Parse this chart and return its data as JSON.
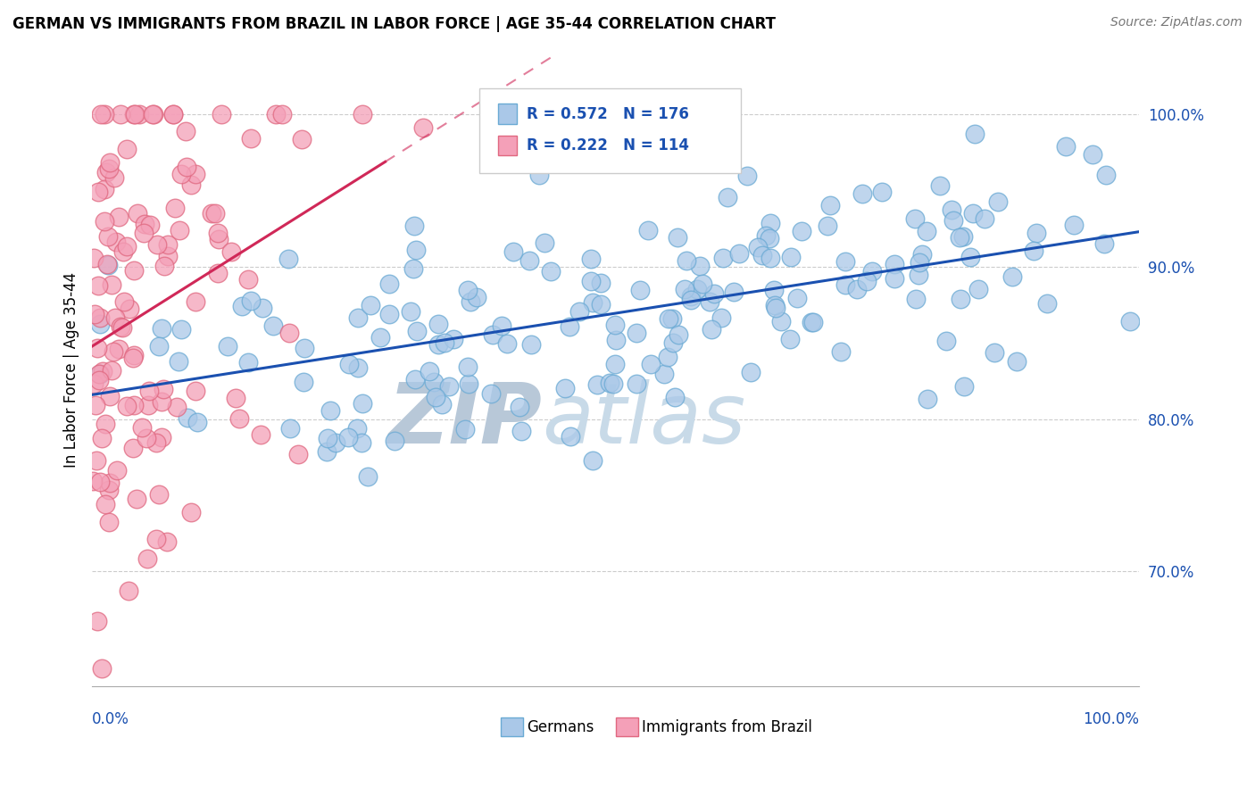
{
  "title": "GERMAN VS IMMIGRANTS FROM BRAZIL IN LABOR FORCE | AGE 35-44 CORRELATION CHART",
  "source": "Source: ZipAtlas.com",
  "ylabel": "In Labor Force | Age 35-44",
  "ytick_labels": [
    "70.0%",
    "80.0%",
    "90.0%",
    "100.0%"
  ],
  "ytick_values": [
    0.7,
    0.8,
    0.9,
    1.0
  ],
  "xlim": [
    0.0,
    1.0
  ],
  "ylim": [
    0.625,
    1.04
  ],
  "blue_R": 0.572,
  "blue_N": 176,
  "pink_R": 0.222,
  "pink_N": 114,
  "blue_color": "#aac8e8",
  "blue_edge": "#6aaad4",
  "pink_color": "#f4a0b8",
  "pink_edge": "#e06880",
  "blue_line_color": "#1a50b0",
  "pink_line_color": "#d02858",
  "watermark_zip": "ZIP",
  "watermark_atlas": "atlas",
  "watermark_color": "#c8d8e8",
  "legend_box_blue": "#aac8e8",
  "legend_box_pink": "#f4a0b8",
  "legend_R_color": "#1a50b0",
  "grid_color": "#cccccc",
  "background": "#ffffff",
  "seed": 42
}
